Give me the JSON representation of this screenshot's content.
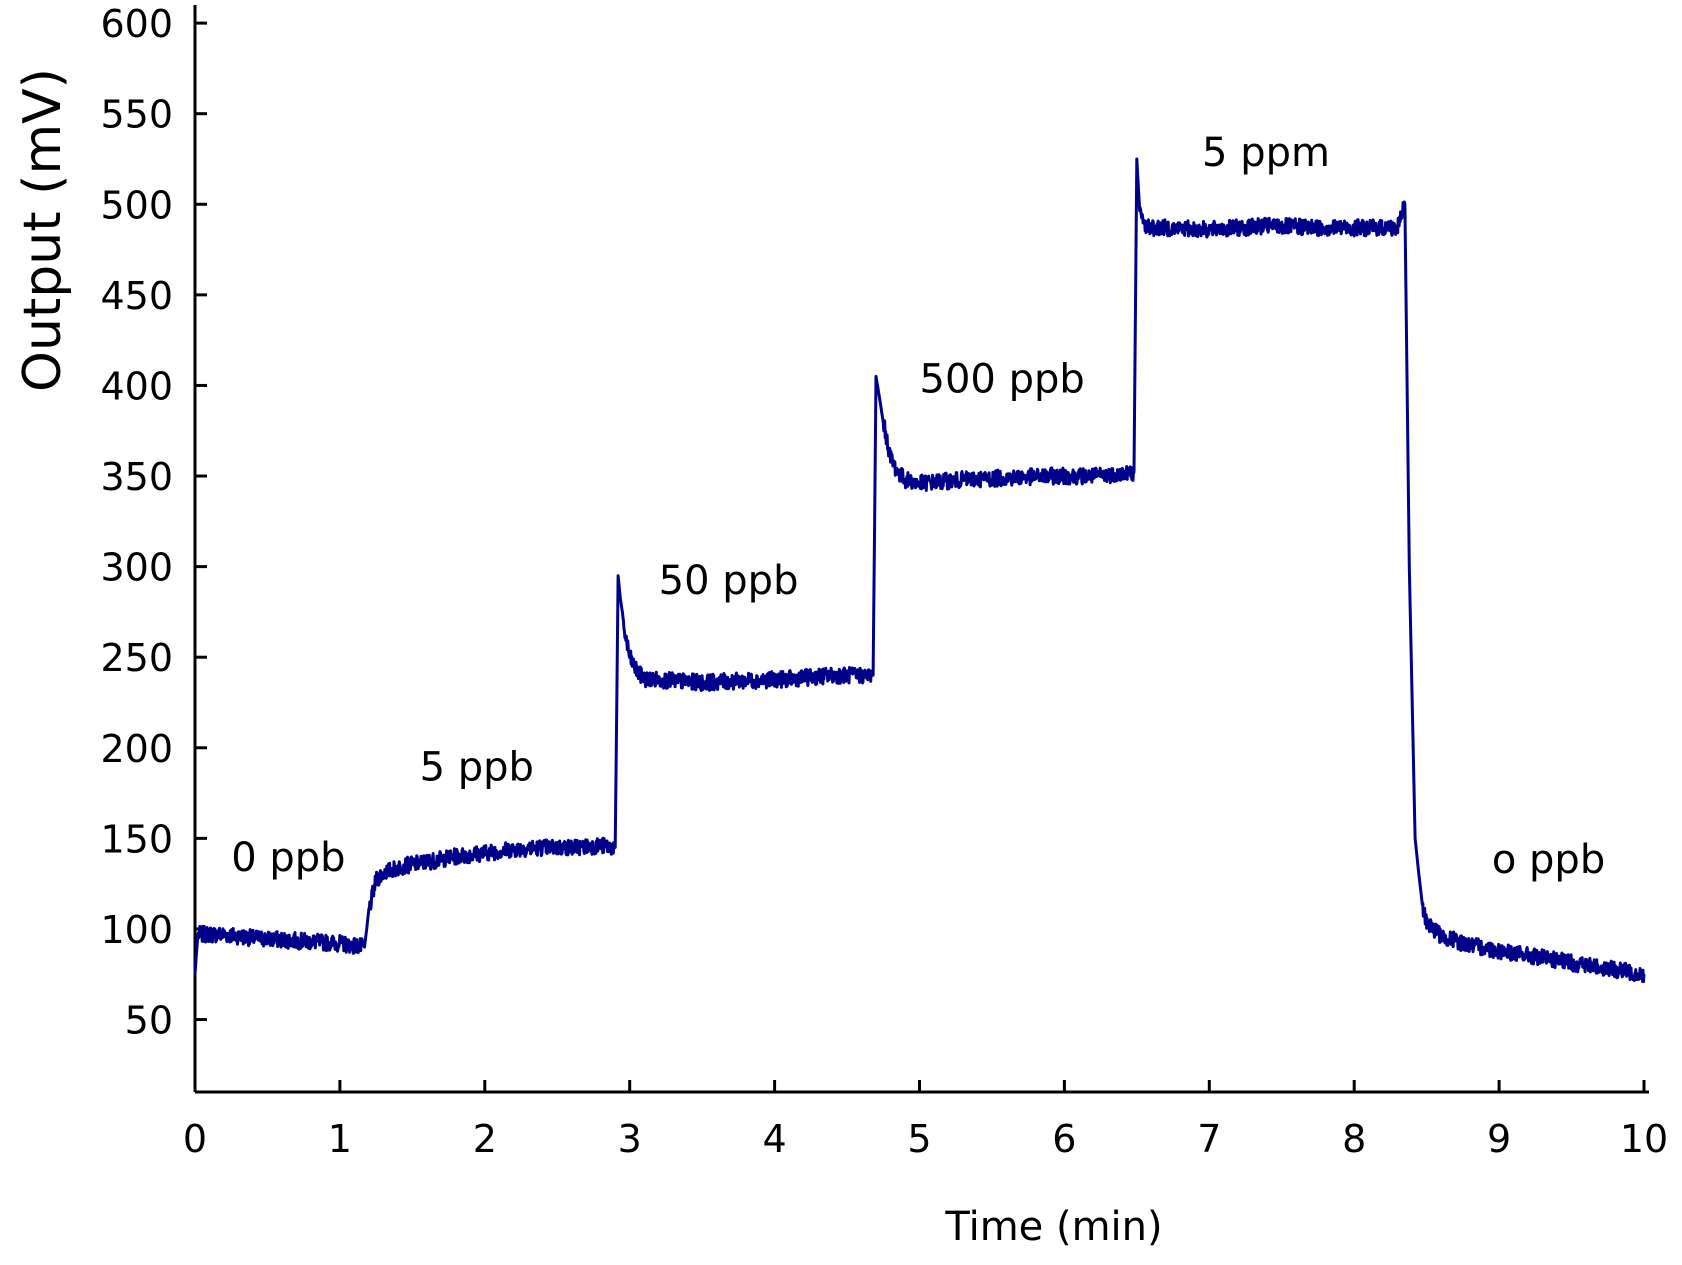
{
  "chart_data": {
    "type": "line",
    "title": "",
    "xlabel": "Time (min)",
    "ylabel": "Output (mV)",
    "xlim": [
      0,
      10
    ],
    "ylim": [
      10,
      610
    ],
    "xticks": [
      0,
      1,
      2,
      3,
      4,
      5,
      6,
      7,
      8,
      9,
      10
    ],
    "yticks": [
      50,
      100,
      150,
      200,
      250,
      300,
      350,
      400,
      450,
      500,
      550,
      600
    ],
    "grid": false,
    "legend": "none",
    "colors": {
      "line": "#00008B",
      "axis": "#000000",
      "text": "#000000",
      "annot_y": "#c0392b",
      "annot_x": "#000000"
    },
    "series": [
      {
        "name": "Output",
        "x": [
          0.0,
          0.02,
          0.2,
          0.4,
          0.6,
          0.8,
          1.0,
          1.17,
          1.2,
          1.25,
          1.3,
          1.45,
          1.6,
          1.8,
          2.0,
          2.2,
          2.4,
          2.6,
          2.8,
          2.9,
          2.92,
          2.95,
          3.0,
          3.05,
          3.1,
          3.3,
          3.5,
          3.8,
          4.1,
          4.4,
          4.68,
          4.7,
          4.75,
          4.8,
          4.85,
          4.9,
          5.0,
          5.3,
          5.6,
          5.9,
          6.2,
          6.48,
          6.5,
          6.52,
          6.55,
          6.6,
          6.7,
          7.0,
          7.4,
          7.8,
          8.3,
          8.35,
          8.38,
          8.42,
          8.47,
          8.5,
          8.55,
          8.6,
          8.8,
          9.0,
          9.3,
          9.6,
          10.0
        ],
        "y": [
          75,
          97,
          97,
          95,
          94,
          93,
          92,
          90,
          110,
          127,
          131,
          135,
          137,
          140,
          142,
          144,
          145,
          145,
          146,
          145,
          295,
          270,
          250,
          242,
          238,
          237,
          236,
          237,
          238,
          240,
          240,
          405,
          380,
          360,
          352,
          348,
          346,
          348,
          349,
          350,
          350,
          352,
          525,
          495,
          489,
          487,
          487,
          486,
          488,
          487,
          487,
          500,
          300,
          150,
          112,
          104,
          100,
          96,
          91,
          88,
          84,
          80,
          75
        ]
      }
    ],
    "annotations": [
      {
        "text": "0 ppb",
        "x": 0.25,
        "y": 132
      },
      {
        "text": "5 ppb",
        "x": 1.55,
        "y": 182
      },
      {
        "text": "50 ppb",
        "x": 3.2,
        "y": 285
      },
      {
        "text": "500 ppb",
        "x": 5.0,
        "y": 396
      },
      {
        "text": "5 ppm",
        "x": 6.95,
        "y": 521
      },
      {
        "text": "o ppb",
        "x": 8.95,
        "y": 131
      }
    ]
  }
}
